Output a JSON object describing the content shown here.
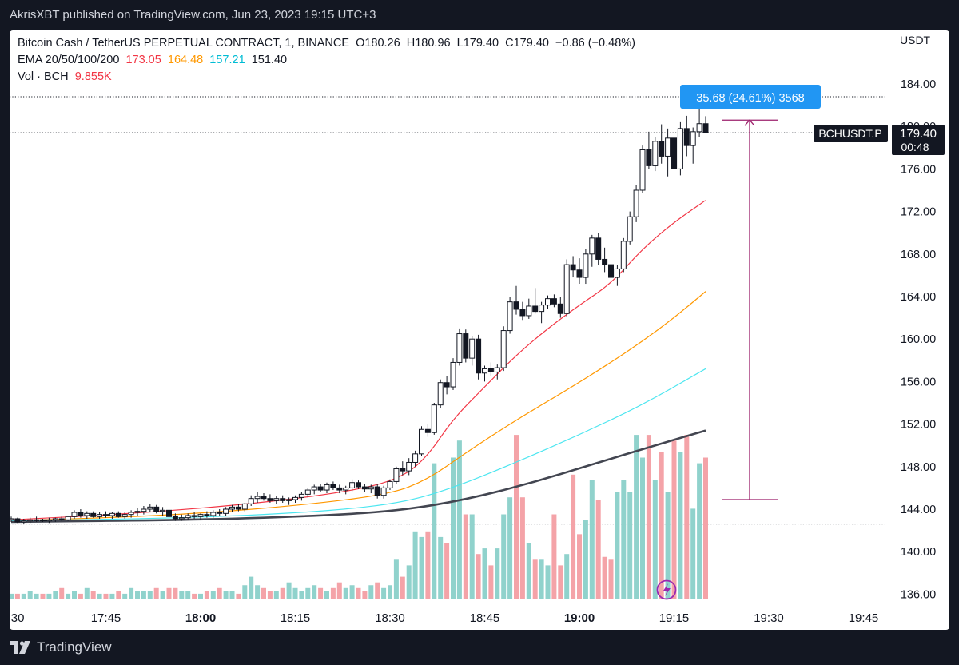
{
  "header": {
    "publish_text": "AkrisXBT published on TradingView.com, Jun 23, 2023 19:15 UTC+3"
  },
  "legend": {
    "symbol_text": "Bitcoin Cash / TetherUS PERPETUAL CONTRACT, 1, BINANCE",
    "ohlc": {
      "open": "O180.26",
      "high": "H180.96",
      "low": "L179.40",
      "close": "C179.40",
      "change": "−0.86 (−0.48%)"
    },
    "ema_label": "EMA 20/50/100/200",
    "ema_values": [
      "173.05",
      "164.48",
      "157.21",
      "151.40"
    ],
    "vol_label": "Vol · BCH",
    "vol_value": "9.855K"
  },
  "axis": {
    "currency": "USDT",
    "price_ticks": [
      "184.00",
      "180.00",
      "176.00",
      "172.00",
      "168.00",
      "164.00",
      "160.00",
      "156.00",
      "152.00",
      "148.00",
      "144.00",
      "140.00",
      "136.00"
    ],
    "time_ticks": [
      {
        "label": ":30",
        "t": 0,
        "bold": false
      },
      {
        "label": "17:45",
        "t": 15,
        "bold": false
      },
      {
        "label": "18:00",
        "t": 30,
        "bold": true
      },
      {
        "label": "18:15",
        "t": 45,
        "bold": false
      },
      {
        "label": "18:30",
        "t": 60,
        "bold": false
      },
      {
        "label": "18:45",
        "t": 75,
        "bold": false
      },
      {
        "label": "19:00",
        "t": 90,
        "bold": true
      },
      {
        "label": "19:15",
        "t": 105,
        "bold": false
      },
      {
        "label": "19:30",
        "t": 120,
        "bold": false
      },
      {
        "label": "19:45",
        "t": 135,
        "bold": false
      }
    ]
  },
  "price_label": {
    "symbol": "BCHUSDT.P",
    "price": "179.40",
    "countdown": "00:48"
  },
  "measure": {
    "text": "35.68 (24.61%) 3568",
    "from": 144.9,
    "to": 180.6
  },
  "footer": {
    "brand": "TradingView"
  },
  "colors": {
    "up": "#ffffff",
    "down": "#131722",
    "vol_up": "#90d2cc",
    "vol_down": "#f4a3a8",
    "ema20": "#f23645",
    "ema50": "#ff9800",
    "ema100": "#4de6f0",
    "ema200": "#434651",
    "measure": "#9c1f6b",
    "measure_label": "#2196f3"
  },
  "chart_data": {
    "type": "candlestick",
    "timeframe": "1m",
    "x_range_minutes": [
      0,
      140
    ],
    "ylim": [
      135,
      187
    ],
    "candles": [
      [
        0,
        143.0,
        143.3,
        142.8,
        143.1
      ],
      [
        1,
        143.1,
        143.2,
        142.7,
        142.8
      ],
      [
        2,
        142.8,
        143.1,
        142.6,
        142.9
      ],
      [
        3,
        142.9,
        143.2,
        142.7,
        143.0
      ],
      [
        4,
        143.0,
        143.3,
        142.8,
        143.0
      ],
      [
        5,
        143.0,
        143.1,
        142.8,
        142.9
      ],
      [
        6,
        142.9,
        143.2,
        142.7,
        143.0
      ],
      [
        7,
        143.0,
        143.2,
        142.8,
        143.1
      ],
      [
        8,
        143.1,
        143.3,
        142.9,
        143.0
      ],
      [
        9,
        143.0,
        143.4,
        142.9,
        143.3
      ],
      [
        10,
        143.3,
        143.9,
        143.1,
        143.7
      ],
      [
        11,
        143.7,
        144.0,
        143.2,
        143.4
      ],
      [
        12,
        143.4,
        143.8,
        143.1,
        143.6
      ],
      [
        13,
        143.6,
        143.8,
        143.2,
        143.3
      ],
      [
        14,
        143.3,
        143.7,
        143.1,
        143.5
      ],
      [
        15,
        143.5,
        143.8,
        143.2,
        143.4
      ],
      [
        16,
        143.4,
        143.7,
        143.1,
        143.6
      ],
      [
        17,
        143.6,
        143.8,
        143.2,
        143.3
      ],
      [
        18,
        143.3,
        143.7,
        143.1,
        143.5
      ],
      [
        19,
        143.5,
        143.9,
        143.2,
        143.7
      ],
      [
        20,
        143.7,
        144.1,
        143.4,
        143.8
      ],
      [
        21,
        143.8,
        144.3,
        143.5,
        144.0
      ],
      [
        22,
        144.0,
        144.5,
        143.7,
        144.2
      ],
      [
        23,
        144.2,
        144.4,
        143.6,
        143.8
      ],
      [
        24,
        143.8,
        144.2,
        143.4,
        143.9
      ],
      [
        25,
        143.9,
        144.1,
        143.1,
        143.3
      ],
      [
        26,
        143.3,
        143.6,
        142.9,
        143.1
      ],
      [
        27,
        143.1,
        143.5,
        142.9,
        143.2
      ],
      [
        28,
        143.2,
        143.6,
        143.0,
        143.4
      ],
      [
        29,
        143.4,
        143.7,
        143.1,
        143.3
      ],
      [
        30,
        143.3,
        143.6,
        143.0,
        143.5
      ],
      [
        31,
        143.5,
        143.8,
        143.2,
        143.4
      ],
      [
        32,
        143.4,
        143.9,
        143.2,
        143.7
      ],
      [
        33,
        143.7,
        144.0,
        143.4,
        143.6
      ],
      [
        34,
        143.6,
        144.2,
        143.4,
        144.0
      ],
      [
        35,
        144.0,
        144.4,
        143.7,
        144.2
      ],
      [
        36,
        144.2,
        144.5,
        143.8,
        144.0
      ],
      [
        37,
        144.0,
        144.6,
        143.8,
        144.5
      ],
      [
        38,
        144.5,
        145.3,
        144.3,
        145.0
      ],
      [
        39,
        145.0,
        145.6,
        144.6,
        145.2
      ],
      [
        40,
        145.2,
        145.5,
        144.8,
        145.0
      ],
      [
        41,
        145.0,
        145.4,
        144.6,
        144.8
      ],
      [
        42,
        144.8,
        145.2,
        144.5,
        145.0
      ],
      [
        43,
        145.0,
        145.3,
        144.6,
        144.8
      ],
      [
        44,
        144.8,
        145.1,
        144.4,
        144.9
      ],
      [
        45,
        144.9,
        145.3,
        144.6,
        145.1
      ],
      [
        46,
        145.1,
        145.6,
        144.8,
        145.4
      ],
      [
        47,
        145.4,
        146.0,
        145.1,
        145.8
      ],
      [
        48,
        145.8,
        146.3,
        145.4,
        146.1
      ],
      [
        49,
        146.1,
        146.4,
        145.6,
        145.8
      ],
      [
        50,
        145.8,
        146.5,
        145.5,
        146.3
      ],
      [
        51,
        146.3,
        146.6,
        145.8,
        146.0
      ],
      [
        52,
        146.0,
        146.3,
        145.5,
        145.8
      ],
      [
        53,
        145.8,
        146.2,
        145.4,
        146.0
      ],
      [
        54,
        146.0,
        146.8,
        145.7,
        146.5
      ],
      [
        55,
        146.5,
        146.7,
        145.9,
        146.1
      ],
      [
        56,
        146.1,
        146.4,
        145.6,
        145.9
      ],
      [
        57,
        145.9,
        146.3,
        145.5,
        146.1
      ],
      [
        58,
        146.1,
        146.4,
        145.0,
        145.3
      ],
      [
        59,
        145.3,
        146.2,
        145.0,
        146.0
      ],
      [
        60,
        146.0,
        146.8,
        145.8,
        146.6
      ],
      [
        61,
        146.6,
        148.0,
        146.4,
        147.8
      ],
      [
        62,
        147.8,
        148.5,
        147.2,
        147.6
      ],
      [
        63,
        147.6,
        148.8,
        147.2,
        148.4
      ],
      [
        64,
        148.4,
        149.5,
        148.0,
        149.2
      ],
      [
        65,
        149.2,
        151.8,
        149.0,
        151.5
      ],
      [
        66,
        151.5,
        152.0,
        150.8,
        151.2
      ],
      [
        67,
        151.2,
        154.0,
        151.0,
        153.8
      ],
      [
        68,
        153.8,
        156.2,
        153.5,
        155.9
      ],
      [
        69,
        155.9,
        156.5,
        154.8,
        155.5
      ],
      [
        70,
        155.5,
        158.2,
        155.2,
        157.8
      ],
      [
        71,
        157.8,
        161.0,
        157.5,
        160.5
      ],
      [
        72,
        160.5,
        160.9,
        157.8,
        158.2
      ],
      [
        73,
        158.2,
        160.3,
        157.5,
        160.0
      ],
      [
        74,
        160.0,
        160.4,
        156.2,
        156.8
      ],
      [
        75,
        156.8,
        157.5,
        156.0,
        157.2
      ],
      [
        76,
        157.2,
        157.8,
        156.5,
        156.9
      ],
      [
        77,
        156.9,
        157.6,
        156.2,
        157.3
      ],
      [
        78,
        157.3,
        161.2,
        157.0,
        160.8
      ],
      [
        79,
        160.8,
        164.0,
        160.5,
        163.5
      ],
      [
        80,
        163.5,
        165.0,
        162.3,
        162.8
      ],
      [
        81,
        162.8,
        163.5,
        161.8,
        162.2
      ],
      [
        82,
        162.2,
        163.8,
        161.9,
        163.1
      ],
      [
        83,
        163.1,
        164.8,
        162.4,
        162.6
      ],
      [
        84,
        162.6,
        163.5,
        161.5,
        163.2
      ],
      [
        85,
        163.2,
        164.1,
        162.8,
        163.8
      ],
      [
        86,
        163.8,
        164.2,
        163.0,
        163.3
      ],
      [
        87,
        163.3,
        164.0,
        162.0,
        162.4
      ],
      [
        88,
        162.4,
        167.5,
        162.1,
        167.0
      ],
      [
        89,
        167.0,
        167.8,
        165.8,
        166.5
      ],
      [
        90,
        166.5,
        167.6,
        165.2,
        165.8
      ],
      [
        91,
        165.8,
        168.5,
        165.2,
        168.0
      ],
      [
        92,
        168.0,
        169.8,
        166.8,
        169.5
      ],
      [
        93,
        169.5,
        170.0,
        167.0,
        167.5
      ],
      [
        94,
        167.5,
        168.6,
        166.3,
        167.0
      ],
      [
        95,
        167.0,
        167.6,
        165.2,
        165.8
      ],
      [
        96,
        165.8,
        167.0,
        165.0,
        166.6
      ],
      [
        97,
        166.6,
        169.5,
        166.3,
        169.2
      ],
      [
        98,
        169.2,
        172.0,
        168.9,
        171.5
      ],
      [
        99,
        171.5,
        174.5,
        171.0,
        174.0
      ],
      [
        100,
        174.0,
        178.2,
        173.7,
        177.8
      ],
      [
        101,
        177.8,
        179.5,
        176.0,
        176.3
      ],
      [
        102,
        176.3,
        179.0,
        175.8,
        178.6
      ],
      [
        103,
        178.6,
        180.2,
        176.5,
        177.2
      ],
      [
        104,
        177.2,
        179.8,
        175.3,
        178.9
      ],
      [
        105,
        178.9,
        179.6,
        175.5,
        176.0
      ],
      [
        106,
        176.0,
        180.4,
        175.4,
        179.8
      ],
      [
        107,
        179.8,
        181.0,
        177.2,
        178.2
      ],
      [
        108,
        178.2,
        179.9,
        176.5,
        179.5
      ],
      [
        109,
        179.5,
        182.8,
        179.0,
        180.26
      ],
      [
        110,
        180.26,
        180.96,
        179.4,
        179.4
      ]
    ],
    "volume_height_fraction": [
      0.02,
      0.02,
      0.02,
      0.03,
      0.02,
      0.02,
      0.02,
      0.03,
      0.04,
      0.02,
      0.03,
      0.02,
      0.04,
      0.03,
      0.02,
      0.02,
      0.02,
      0.03,
      0.02,
      0.04,
      0.03,
      0.03,
      0.03,
      0.04,
      0.03,
      0.04,
      0.04,
      0.03,
      0.03,
      0.02,
      0.02,
      0.03,
      0.03,
      0.04,
      0.03,
      0.03,
      0.02,
      0.05,
      0.08,
      0.05,
      0.04,
      0.03,
      0.03,
      0.04,
      0.06,
      0.04,
      0.03,
      0.04,
      0.05,
      0.04,
      0.03,
      0.04,
      0.06,
      0.04,
      0.05,
      0.04,
      0.03,
      0.05,
      0.06,
      0.04,
      0.05,
      0.14,
      0.08,
      0.12,
      0.24,
      0.22,
      0.24,
      0.48,
      0.22,
      0.2,
      0.5,
      0.56,
      0.3,
      0.3,
      0.16,
      0.18,
      0.12,
      0.18,
      0.3,
      0.36,
      0.58,
      0.36,
      0.2,
      0.14,
      0.14,
      0.12,
      0.3,
      0.12,
      0.16,
      0.44,
      0.23,
      0.28,
      0.42,
      0.35,
      0.15,
      0.14,
      0.38,
      0.42,
      0.38,
      0.58,
      0.5,
      0.58,
      0.42,
      0.52,
      0.38,
      0.56,
      0.52,
      0.58,
      0.32,
      0.48,
      0.5
    ],
    "ema20": [
      [
        0,
        143.0
      ],
      [
        20,
        143.6
      ],
      [
        40,
        144.6
      ],
      [
        55,
        145.8
      ],
      [
        62,
        147.0
      ],
      [
        66,
        149.0
      ],
      [
        70,
        152.5
      ],
      [
        75,
        155.5
      ],
      [
        80,
        158.5
      ],
      [
        85,
        161.0
      ],
      [
        90,
        163.2
      ],
      [
        95,
        165.2
      ],
      [
        100,
        168.5
      ],
      [
        105,
        171.0
      ],
      [
        110,
        173.05
      ]
    ],
    "ema50": [
      [
        0,
        142.9
      ],
      [
        25,
        143.4
      ],
      [
        45,
        144.3
      ],
      [
        60,
        145.4
      ],
      [
        66,
        146.8
      ],
      [
        72,
        149.3
      ],
      [
        80,
        152.4
      ],
      [
        88,
        155.2
      ],
      [
        95,
        157.8
      ],
      [
        100,
        159.8
      ],
      [
        105,
        162.0
      ],
      [
        110,
        164.48
      ]
    ],
    "ema100": [
      [
        0,
        142.9
      ],
      [
        30,
        143.2
      ],
      [
        50,
        143.8
      ],
      [
        62,
        144.6
      ],
      [
        70,
        146.0
      ],
      [
        80,
        148.4
      ],
      [
        90,
        151.0
      ],
      [
        100,
        153.8
      ],
      [
        110,
        157.21
      ]
    ],
    "ema200": [
      [
        0,
        142.8
      ],
      [
        30,
        143.0
      ],
      [
        50,
        143.4
      ],
      [
        62,
        143.9
      ],
      [
        72,
        144.9
      ],
      [
        82,
        146.4
      ],
      [
        92,
        148.2
      ],
      [
        102,
        150.0
      ],
      [
        110,
        151.4
      ]
    ]
  }
}
